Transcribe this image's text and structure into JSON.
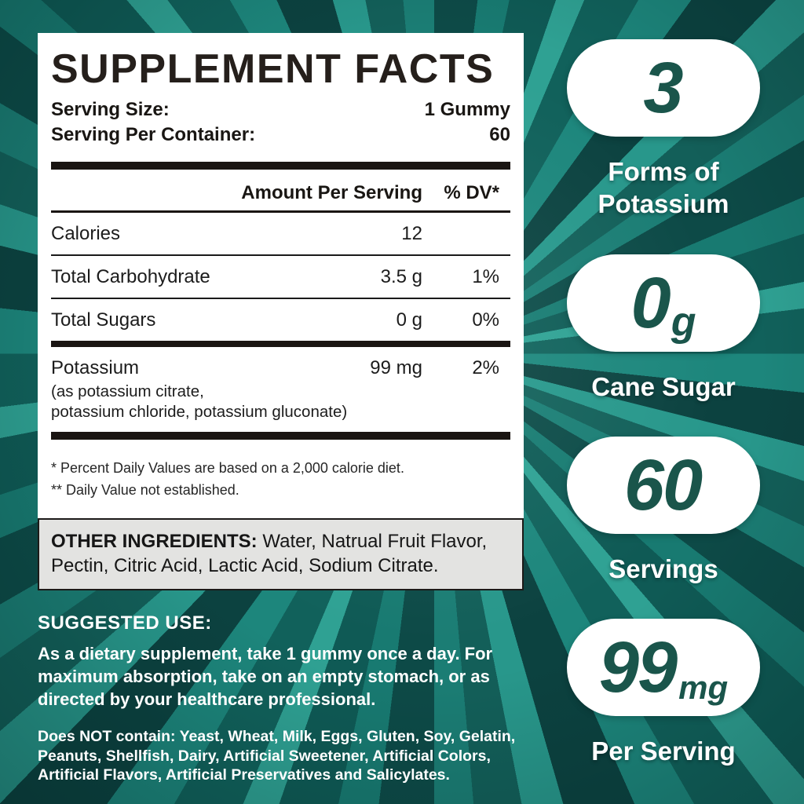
{
  "colors": {
    "background_teal_dark": "#0c4240",
    "background_teal_mid": "#11615b",
    "background_teal_light": "#2fa193",
    "panel_bg": "#ffffff",
    "ingredients_bg": "#e3e3e1",
    "pill_number_green": "#1a554b",
    "text_dark": "#1c1c1c",
    "badge_text": "#ffffff"
  },
  "panel": {
    "title": "SUPPLEMENT FACTS",
    "serving_size_label": "Serving Size:",
    "serving_size_value": "1 Gummy",
    "servings_label": "Serving Per Container:",
    "servings_value": "60",
    "col_amount": "Amount Per Serving",
    "col_dv": "% DV*",
    "rows": [
      {
        "name": "Calories",
        "amount": "12",
        "dv": ""
      },
      {
        "name": "Total Carbohydrate",
        "amount": "3.5 g",
        "dv": "1%"
      },
      {
        "name": "Total Sugars",
        "amount": "0 g",
        "dv": "0%"
      },
      {
        "name": "Potassium",
        "amount": "99 mg",
        "dv": "2%",
        "note_line1": "(as potassium citrate,",
        "note_line2": "potassium chloride, potassium gluconate)"
      }
    ],
    "footnote1": "* Percent Daily Values are based on a 2,000 calorie diet.",
    "footnote2": "** Daily Value not established.",
    "other_ingredients_label": "OTHER INGREDIENTS:",
    "other_ingredients_line1_rest": " Water, Natrual Fruit Flavor,",
    "other_ingredients_line2": "Pectin, Citric Acid, Lactic Acid, Sodium Citrate."
  },
  "suggested_use": {
    "heading": "SUGGESTED USE:",
    "body_lines": [
      "As a dietary supplement, take 1 gummy once a day. For",
      "maximum absorption, take on an empty stomach, or as",
      "directed by your healthcare professional."
    ],
    "dnc_lines": [
      "Does NOT contain: Yeast, Wheat, Milk, Eggs, Gluten, Soy, Gelatin,",
      "Peanuts, Shellfish, Dairy, Artificial Sweetener, Artificial Colors,",
      "Artificial Flavors, Artificial Preservatives and Salicylates."
    ]
  },
  "badges": [
    {
      "value": "3",
      "unit": "",
      "label_line1": "Forms of",
      "label_line2": "Potassium"
    },
    {
      "value": "0",
      "unit": "g",
      "label_line1": "Cane Sugar",
      "label_line2": ""
    },
    {
      "value": "60",
      "unit": "",
      "label_line1": "Servings",
      "label_line2": ""
    },
    {
      "value": "99",
      "unit": "mg",
      "label_line1": "Per Serving",
      "label_line2": ""
    }
  ]
}
